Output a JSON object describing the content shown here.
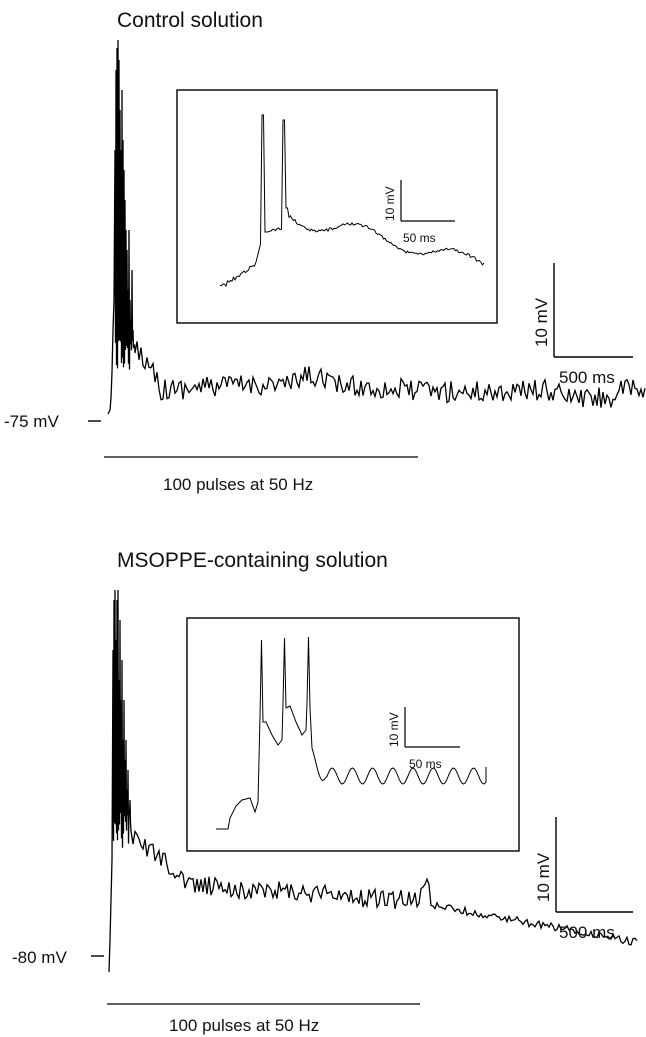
{
  "panels": [
    {
      "id": "control",
      "title": "Control solution",
      "baseline_label": "-75 mV",
      "stimulus_label": "100 pulses at 50 Hz",
      "scale_bar": {
        "voltage": "10 mV",
        "time": "500 ms"
      },
      "inset_scale_bar": {
        "voltage": "10 mV",
        "time": "50 ms"
      }
    },
    {
      "id": "msoppe",
      "title": "MSOPPE-containing solution",
      "baseline_label": "-80 mV",
      "stimulus_label": "100 pulses at 50 Hz",
      "scale_bar": {
        "voltage": "10 mV",
        "time": "500 ms"
      },
      "inset_scale_bar": {
        "voltage": "10 mV",
        "time": "50 ms"
      }
    }
  ]
}
